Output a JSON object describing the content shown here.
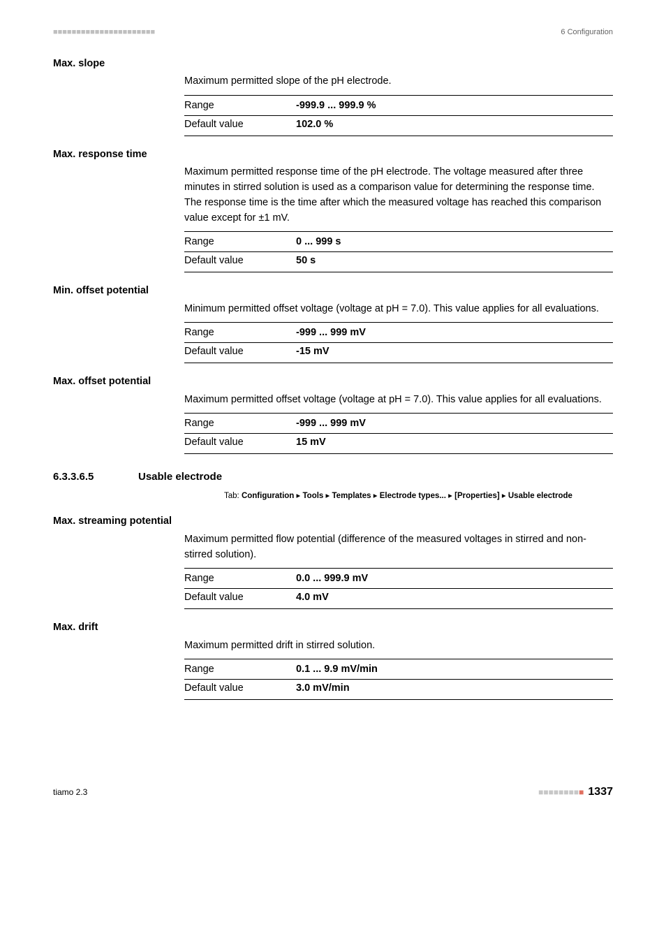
{
  "header": {
    "left_dots": "■■■■■■■■■■■■■■■■■■■■■■",
    "right": "6 Configuration"
  },
  "sections": [
    {
      "label": "Max. slope",
      "desc": "Maximum permitted slope of the pH electrode.",
      "rows": [
        {
          "k": "Range",
          "v": "-999.9 ... 999.9 %"
        },
        {
          "k": "Default value",
          "v": "102.0 %"
        }
      ]
    },
    {
      "label": "Max. response time",
      "desc": "Maximum permitted response time of the pH electrode. The voltage measured after three minutes in stirred solution is used as a comparison value for determining the response time. The response time is the time after which the measured voltage has reached this comparison value except for ±1 mV.",
      "rows": [
        {
          "k": "Range",
          "v": "0 ... 999 s"
        },
        {
          "k": "Default value",
          "v": "50 s"
        }
      ]
    },
    {
      "label": "Min. offset potential",
      "desc": "Minimum permitted offset voltage (voltage at pH = 7.0). This value applies for all evaluations.",
      "rows": [
        {
          "k": "Range",
          "v": "-999 ... 999 mV"
        },
        {
          "k": "Default value",
          "v": "-15 mV"
        }
      ]
    },
    {
      "label": "Max. offset potential",
      "desc": "Maximum permitted offset voltage (voltage at pH = 7.0). This value applies for all evaluations.",
      "rows": [
        {
          "k": "Range",
          "v": "-999 ... 999 mV"
        },
        {
          "k": "Default value",
          "v": "15 mV"
        }
      ]
    }
  ],
  "subhead": {
    "num": "6.3.3.6.5",
    "title": "Usable electrode",
    "tab_prefix": "Tab: ",
    "tab_chain": [
      "Configuration",
      "Tools",
      "Templates",
      "Electrode types...",
      "[Properties]",
      "Usable electrode"
    ]
  },
  "sections2": [
    {
      "label": "Max. streaming potential",
      "desc": "Maximum permitted flow potential (difference of the measured voltages in stirred and non-stirred solution).",
      "rows": [
        {
          "k": "Range",
          "v": "0.0 ... 999.9 mV"
        },
        {
          "k": "Default value",
          "v": "4.0 mV"
        }
      ]
    },
    {
      "label": "Max. drift",
      "desc": "Maximum permitted drift in stirred solution.",
      "rows": [
        {
          "k": "Range",
          "v": "0.1 ... 9.9 mV/min"
        },
        {
          "k": "Default value",
          "v": "3.0 mV/min"
        }
      ]
    }
  ],
  "footer": {
    "left": "tiamo 2.3",
    "dots_gray": "■■■■■■■■",
    "dots_accent": "■",
    "page": "1337"
  },
  "colors": {
    "text": "#000000",
    "muted": "#646464",
    "dots_gray": "#c7c7c7",
    "dots_accent": "#e07060",
    "bg": "#ffffff"
  },
  "typography": {
    "body_pt": 14.5,
    "small_pt": 11,
    "subhead_pt": 15,
    "pagenum_pt": 16
  }
}
